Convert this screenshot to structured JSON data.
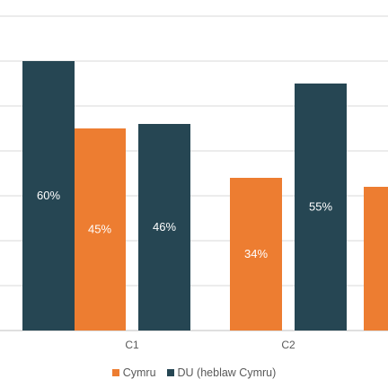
{
  "chart_data": {
    "type": "bar",
    "categories": [
      "",
      "C1",
      "C2",
      ""
    ],
    "series": [
      {
        "name": "Cymru",
        "color": "#ED7D31",
        "values": [
          null,
          45,
          34,
          32
        ]
      },
      {
        "name": "DU (heblaw Cymru)",
        "color": "#264653",
        "values": [
          60,
          46,
          55,
          null
        ]
      }
    ],
    "data_labels": [
      {
        "series": 0,
        "category": 1,
        "text": "45%"
      },
      {
        "series": 0,
        "category": 2,
        "text": "34%"
      },
      {
        "series": 1,
        "category": 0,
        "text": "60%"
      },
      {
        "series": 1,
        "category": 1,
        "text": "46%"
      },
      {
        "series": 1,
        "category": 2,
        "text": "55%"
      }
    ],
    "ylim": [
      0,
      70
    ],
    "grid": true,
    "legend_placement": "bottom"
  }
}
